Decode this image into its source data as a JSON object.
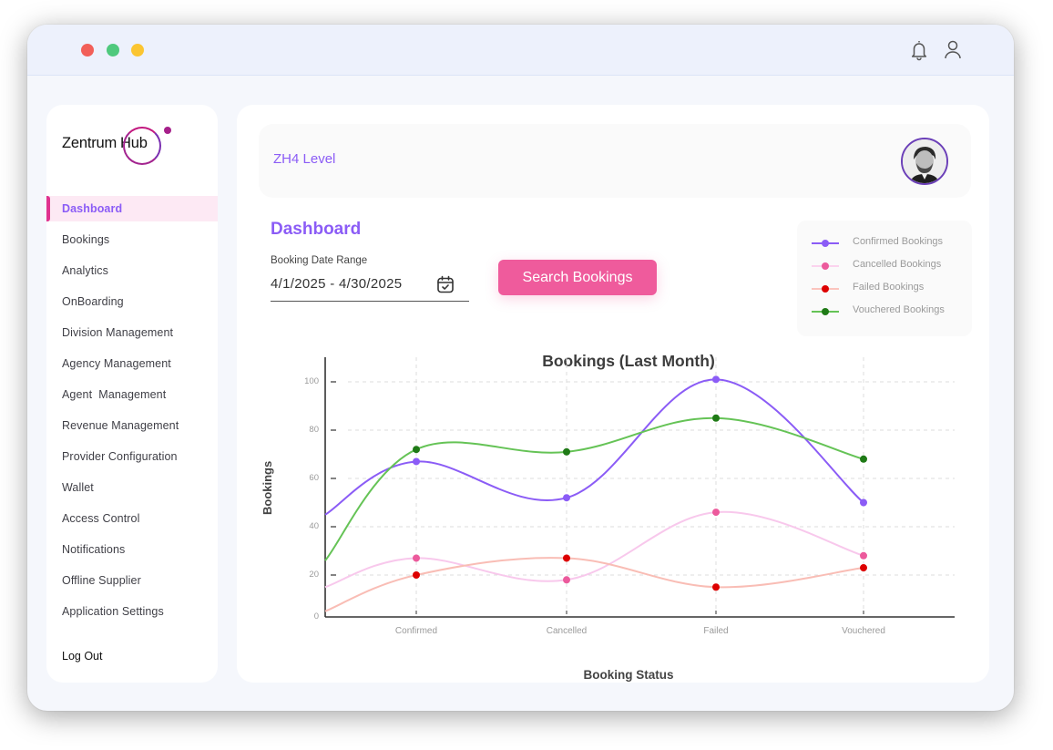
{
  "window": {
    "traffic_lights": [
      "close",
      "minimize",
      "maximize"
    ],
    "top_icons": [
      "bell-icon",
      "user-icon"
    ]
  },
  "sidebar": {
    "logo": {
      "text": "Zentrum",
      "ring_text": "Hub"
    },
    "items": [
      {
        "label": "Dashboard",
        "active": true
      },
      {
        "label": "Bookings"
      },
      {
        "label": "Analytics"
      },
      {
        "label": "OnBoarding"
      },
      {
        "label": "Division Management"
      },
      {
        "label": "Agency Management"
      },
      {
        "label": "Agent  Management"
      },
      {
        "label": "Revenue Management"
      },
      {
        "label": "Provider Configuration"
      },
      {
        "label": "Wallet"
      },
      {
        "label": "Access Control"
      },
      {
        "label": "Notifications"
      },
      {
        "label": "Offline Supplier"
      },
      {
        "label": "Application Settings"
      }
    ],
    "logout_label": "Log Out"
  },
  "header": {
    "level": "ZH4 Level",
    "avatar_icon": "user-avatar"
  },
  "main": {
    "title": "Dashboard",
    "date_range": {
      "label": "Booking Date Range",
      "value": "4/1/2025 - 4/30/2025",
      "icon": "calendar-check-icon"
    },
    "search_button": "Search Bookings"
  },
  "colors": {
    "accent_purple": "#8b5cf6",
    "accent_pink": "#ef5b9c",
    "confirmed": "#8b5cf6",
    "cancelled": "#f8c8ec",
    "cancelled_marker": "#ec5a9c",
    "failed": "#f9bdb5",
    "failed_marker": "#dd0000",
    "vouchered": "#65c356",
    "vouchered_marker": "#1f7a16"
  },
  "chart_data": {
    "type": "line",
    "title": "Bookings (Last Month)",
    "xlabel": "Booking Status",
    "ylabel": "Bookings",
    "categories": [
      "Confirmed",
      "Cancelled",
      "Failed",
      "Vouchered"
    ],
    "yticks": [
      0,
      20,
      40,
      60,
      80,
      100
    ],
    "ylim": [
      0,
      110
    ],
    "grid": true,
    "legend_position": "top-right",
    "series": [
      {
        "name": "Confirmed Bookings",
        "values": [
          67,
          52,
          101,
          50
        ],
        "color": "#8b5cf6",
        "marker": "#8b5cf6"
      },
      {
        "name": "Cancelled Bookings",
        "values": [
          27,
          18,
          46,
          28
        ],
        "color": "#f8c8ec",
        "marker": "#ec5a9c"
      },
      {
        "name": "Failed Bookings",
        "values": [
          20,
          27,
          15,
          23
        ],
        "color": "#f9bdb5",
        "marker": "#dd0000"
      },
      {
        "name": "Vouchered Bookings",
        "values": [
          72,
          71,
          85,
          68
        ],
        "color": "#65c356",
        "marker": "#1f7a16"
      }
    ]
  }
}
